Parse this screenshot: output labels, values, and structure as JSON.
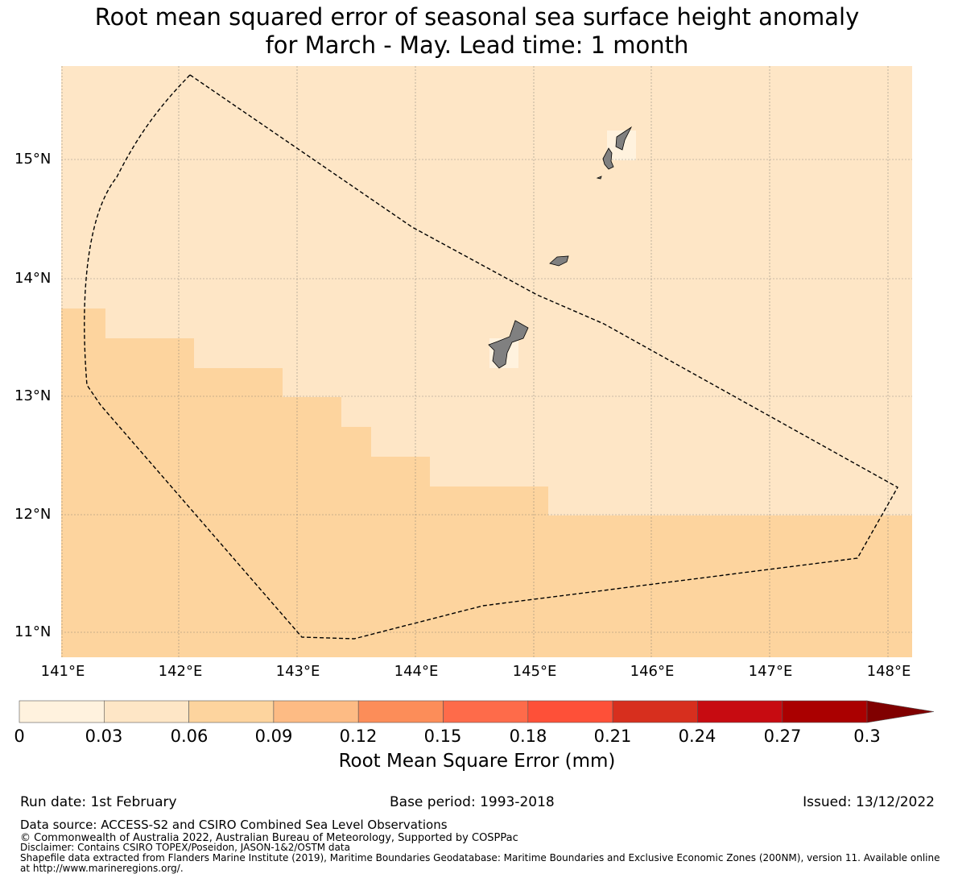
{
  "title": {
    "line1": "Root mean squared error of seasonal sea surface height anomaly",
    "line2": "for March - May. Lead time: 1 month"
  },
  "map": {
    "lat_labels": [
      "15°N",
      "14°N",
      "13°N",
      "12°N",
      "11°N"
    ],
    "lon_labels": [
      "141°E",
      "142°E",
      "143°E",
      "144°E",
      "145°E",
      "146°E",
      "147°E",
      "148°E"
    ],
    "colors": {
      "bin_0_03": "#fff2de",
      "bin_03_06": "#fee6c6",
      "bin_06_09": "#fdd49e",
      "land": "#808080",
      "boundary": "#000000"
    }
  },
  "colorbar": {
    "ticks": [
      "0",
      "0.03",
      "0.06",
      "0.09",
      "0.12",
      "0.15",
      "0.18",
      "0.21",
      "0.24",
      "0.27",
      "0.3"
    ],
    "colors": [
      "#fff2de",
      "#fee6c6",
      "#fdd49e",
      "#fdbb84",
      "#fc8d59",
      "#fe6b4a",
      "#fe5038",
      "#d72f1e",
      "#c70b11",
      "#aa0000"
    ],
    "extend_color": "#800000",
    "label": "Root Mean Square Error (mm)"
  },
  "footer": {
    "run_date": "Run date: 1st February",
    "base_period": "Base period: 1993-2018",
    "issued": "Issued: 13/12/2022",
    "data_source": "Data source: ACCESS-S2 and CSIRO Combined Sea Level Observations",
    "copyright": "© Commonwealth of Australia 2022, Australian Bureau of Meteorology, Supported by COSPPac",
    "disclaimer": "Disclaimer: Contains CSIRO TOPEX/Poseidon, JASON-1&2/OSTM data",
    "shapefile": "Shapefile data extracted from Flanders Marine Institute (2019), Maritime Boundaries Geodatabase: Maritime Boundaries and Exclusive Economic Zones (200NM), version 11. Available online at http://www.marineregions.org/."
  }
}
